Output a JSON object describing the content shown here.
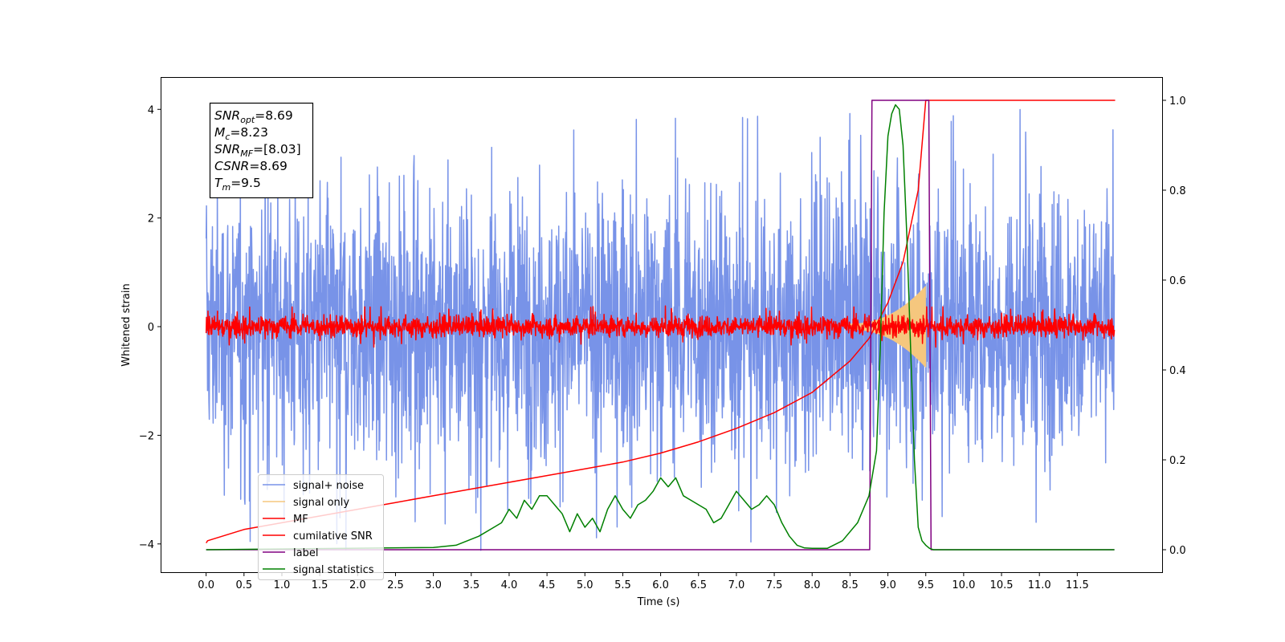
{
  "chart_data": {
    "type": "line",
    "xlabel": "Time (s)",
    "ylabel": "Whitened strain",
    "x_ticks": [
      "0.0",
      "0.5",
      "1.0",
      "1.5",
      "2.0",
      "2.5",
      "3.0",
      "3.5",
      "4.0",
      "4.5",
      "5.0",
      "5.5",
      "6.0",
      "6.5",
      "7.0",
      "7.5",
      "8.0",
      "8.5",
      "9.0",
      "9.5",
      "10.0",
      "10.5",
      "11.0",
      "11.5"
    ],
    "x_tick_values": [
      0,
      0.5,
      1,
      1.5,
      2,
      2.5,
      3,
      3.5,
      4,
      4.5,
      5,
      5.5,
      6,
      6.5,
      7,
      7.5,
      8,
      8.5,
      9,
      9.5,
      10,
      10.5,
      11,
      11.5
    ],
    "y_ticks": [
      "4",
      "2",
      "0",
      "−2",
      "−4"
    ],
    "y_tick_values": [
      4,
      2,
      0,
      -2,
      -4
    ],
    "y2_ticks": [
      "1.0",
      "0.8",
      "0.6",
      "0.4",
      "0.2",
      "0.0"
    ],
    "y2_tick_values": [
      1,
      0.8,
      0.6,
      0.4,
      0.2,
      0
    ],
    "xlim": [
      -0.59,
      12.62
    ],
    "ylim": [
      -4.52,
      4.58
    ],
    "y2lim": [
      -0.05,
      1.05
    ],
    "grid": false,
    "legend_position": "lower-left",
    "annotation": [
      {
        "base": "SNR",
        "sub": "opt",
        "value": "=8.69"
      },
      {
        "base": "M",
        "sub": "c",
        "value": "=8.23"
      },
      {
        "base": "SNR",
        "sub": "MF",
        "value": "=[8.03]"
      },
      {
        "base": "CSNR",
        "sub": "",
        "value": "=8.69"
      },
      {
        "base": "T",
        "sub": "m",
        "value": "=9.5"
      }
    ],
    "series": [
      {
        "name": "signal+ noise",
        "color": "#7893e8",
        "axis": "left",
        "kind": "noise",
        "x_range": [
          0,
          11.99
        ],
        "envelope": 2.3,
        "peak": 4.15
      },
      {
        "name": "signal only",
        "color": "#f5c77e",
        "axis": "left",
        "kind": "chirp",
        "x_range": [
          8.5,
          9.5
        ],
        "amplitude_start": 0.05,
        "amplitude_end": 0.75
      },
      {
        "name": "MF",
        "color": "#ff0000",
        "axis": "left",
        "kind": "noise",
        "x_range": [
          0,
          11.99
        ],
        "envelope": 0.18,
        "peak": 0.4
      },
      {
        "name": "cumilative SNR",
        "color": "#ff0000",
        "axis": "right",
        "x": [
          0,
          0.02,
          0.5,
          1.0,
          1.5,
          2.0,
          2.5,
          3.0,
          3.5,
          4.0,
          4.5,
          5.0,
          5.5,
          6.0,
          6.5,
          7.0,
          7.5,
          8.0,
          8.5,
          8.75,
          9.0,
          9.2,
          9.4,
          9.5,
          9.5,
          12.0
        ],
        "y": [
          0.015,
          0.02,
          0.045,
          0.06,
          0.075,
          0.09,
          0.105,
          0.12,
          0.135,
          0.15,
          0.165,
          0.18,
          0.195,
          0.215,
          0.24,
          0.27,
          0.305,
          0.35,
          0.42,
          0.47,
          0.55,
          0.64,
          0.8,
          1.0,
          1.0,
          1.0
        ]
      },
      {
        "name": "label",
        "color": "#800080",
        "axis": "right",
        "x": [
          0,
          8.76,
          8.79,
          9.5,
          9.54,
          9.57,
          11.99
        ],
        "y": [
          0,
          0,
          1.0,
          1.0,
          1.0,
          0,
          0
        ]
      },
      {
        "name": "signal statistics",
        "color": "#008000",
        "axis": "right",
        "x": [
          0,
          3.0,
          3.3,
          3.6,
          3.8,
          3.9,
          4.0,
          4.1,
          4.2,
          4.3,
          4.4,
          4.5,
          4.6,
          4.7,
          4.8,
          4.9,
          5.0,
          5.1,
          5.2,
          5.3,
          5.4,
          5.5,
          5.6,
          5.7,
          5.8,
          5.9,
          6.0,
          6.1,
          6.2,
          6.3,
          6.4,
          6.5,
          6.6,
          6.7,
          6.8,
          6.9,
          7.0,
          7.1,
          7.2,
          7.3,
          7.4,
          7.5,
          7.6,
          7.7,
          7.8,
          7.9,
          8.0,
          8.2,
          8.4,
          8.6,
          8.75,
          8.85,
          8.9,
          8.95,
          9.0,
          9.05,
          9.1,
          9.15,
          9.2,
          9.25,
          9.3,
          9.35,
          9.4,
          9.45,
          9.5,
          9.55,
          9.6,
          10.0,
          11.0,
          11.99
        ],
        "y": [
          0,
          0.005,
          0.01,
          0.03,
          0.05,
          0.06,
          0.09,
          0.07,
          0.11,
          0.09,
          0.12,
          0.12,
          0.1,
          0.08,
          0.04,
          0.08,
          0.05,
          0.07,
          0.04,
          0.09,
          0.12,
          0.09,
          0.07,
          0.1,
          0.11,
          0.13,
          0.16,
          0.14,
          0.16,
          0.12,
          0.11,
          0.1,
          0.09,
          0.06,
          0.07,
          0.1,
          0.13,
          0.11,
          0.09,
          0.1,
          0.12,
          0.1,
          0.06,
          0.03,
          0.01,
          0.004,
          0.003,
          0.003,
          0.02,
          0.06,
          0.12,
          0.22,
          0.45,
          0.75,
          0.92,
          0.97,
          0.99,
          0.98,
          0.9,
          0.7,
          0.45,
          0.2,
          0.05,
          0.02,
          0.01,
          0.003,
          0,
          0,
          0,
          0
        ]
      }
    ]
  }
}
